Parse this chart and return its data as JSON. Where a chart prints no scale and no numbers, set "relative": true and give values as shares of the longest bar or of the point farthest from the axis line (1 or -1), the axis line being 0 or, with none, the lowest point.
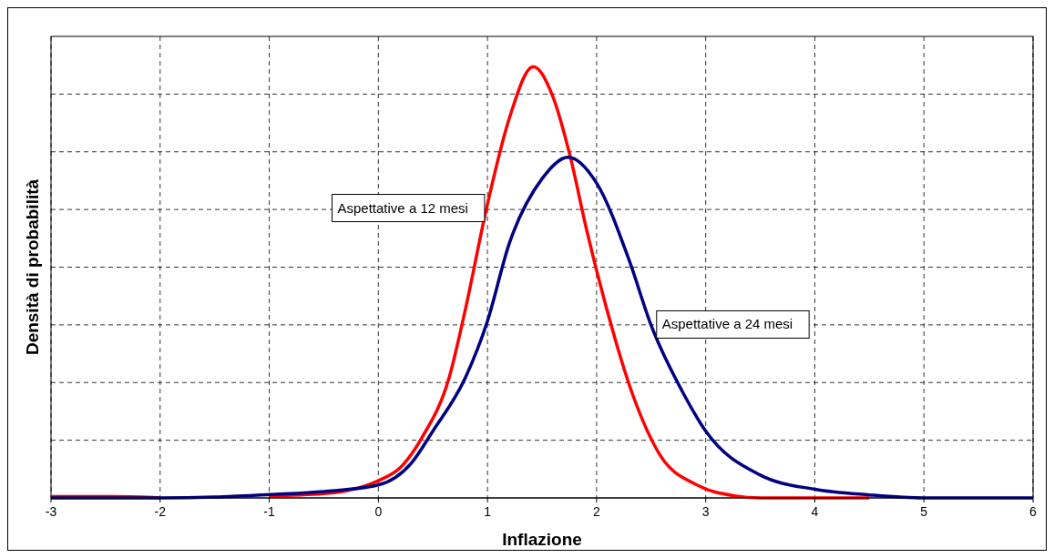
{
  "chart_data": {
    "type": "line",
    "xlabel": "Inflazione",
    "ylabel": "Densità di probabilità",
    "relative": true,
    "xlim": [
      -3,
      6
    ],
    "xticks": [
      -3,
      -2,
      -1,
      0,
      1,
      2,
      3,
      4,
      5,
      6
    ],
    "grid": true,
    "legend": false,
    "marker": "none",
    "line_style": "solid",
    "series": [
      {
        "name": "Aspettative a 12 mesi",
        "color": "#ff0000",
        "x": [
          -3,
          -2.4,
          -2,
          -1.5,
          -1,
          -0.5,
          0,
          0.2,
          0.4,
          0.65,
          0.8,
          0.99,
          1.2,
          1.42,
          1.6,
          1.76,
          1.91,
          2.08,
          2.33,
          2.58,
          2.92,
          3.26,
          3.5,
          4,
          4.5
        ],
        "values": [
          0.003,
          0.003,
          0,
          null,
          0.005,
          0.01,
          0.04,
          0.07,
          0.14,
          0.28,
          0.44,
          0.67,
          0.88,
          1,
          0.93,
          0.79,
          0.62,
          0.45,
          0.24,
          0.1,
          0.03,
          0.005,
          0,
          0,
          0
        ]
      },
      {
        "name": "Aspettative a 24 mesi",
        "color": "#000080",
        "x": [
          -3,
          -2,
          -1.5,
          -1,
          -0.5,
          0,
          0.3,
          0.5,
          0.8,
          1,
          1.2,
          1.5,
          1.74,
          2,
          2.3,
          2.5,
          2.8,
          3,
          3.5,
          4,
          4.5,
          5,
          6
        ],
        "values": [
          0,
          0,
          0.002,
          0.008,
          0.015,
          0.03,
          0.08,
          0.155,
          0.28,
          0.41,
          0.59,
          0.74,
          0.79,
          0.73,
          0.55,
          0.4,
          0.24,
          0.155,
          0.053,
          0.02,
          0.007,
          0,
          0
        ]
      }
    ]
  }
}
